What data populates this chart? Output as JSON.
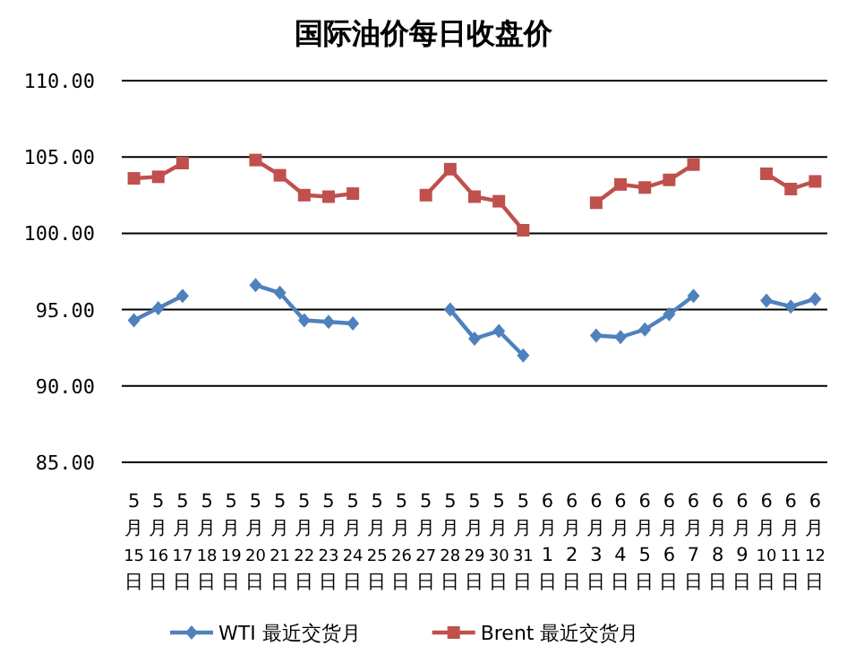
{
  "chart_data": {
    "type": "line",
    "title": "国际油价每日收盘价",
    "categories": [
      "5月15日",
      "5月16日",
      "5月17日",
      "5月18日",
      "5月19日",
      "5月20日",
      "5月21日",
      "5月22日",
      "5月23日",
      "5月24日",
      "5月25日",
      "5月26日",
      "5月27日",
      "5月28日",
      "5月29日",
      "5月30日",
      "5月31日",
      "6月1日",
      "6月2日",
      "6月3日",
      "6月4日",
      "6月5日",
      "6月6日",
      "6月7日",
      "6月8日",
      "6月9日",
      "6月10日",
      "6月11日",
      "6月12日"
    ],
    "series": [
      {
        "name": "WTI 最近交货月",
        "color": "#4f81bd",
        "marker": "diamond",
        "values": [
          94.3,
          95.1,
          95.9,
          null,
          null,
          96.6,
          96.1,
          94.3,
          94.2,
          94.1,
          null,
          null,
          null,
          95.0,
          93.1,
          93.6,
          92.0,
          null,
          null,
          93.3,
          93.2,
          93.7,
          94.7,
          95.9,
          null,
          null,
          95.6,
          95.2,
          95.7
        ]
      },
      {
        "name": "Brent 最近交货月",
        "color": "#c0504d",
        "marker": "square",
        "values": [
          103.6,
          103.7,
          104.6,
          null,
          null,
          104.8,
          103.8,
          102.5,
          102.4,
          102.6,
          null,
          null,
          102.5,
          104.2,
          102.4,
          102.1,
          100.2,
          null,
          null,
          102.0,
          103.2,
          103.0,
          103.5,
          104.5,
          null,
          null,
          103.9,
          102.9,
          103.4
        ]
      }
    ],
    "ylim": [
      85,
      110
    ],
    "yticks": [
      {
        "value": 85,
        "label": "85.00"
      },
      {
        "value": 90,
        "label": "90.00"
      },
      {
        "value": 95,
        "label": "95.00"
      },
      {
        "value": 100,
        "label": "100.00"
      },
      {
        "value": 105,
        "label": "105.00"
      },
      {
        "value": 110,
        "label": "110.00"
      }
    ],
    "grid": "y",
    "legend": "bottom"
  }
}
